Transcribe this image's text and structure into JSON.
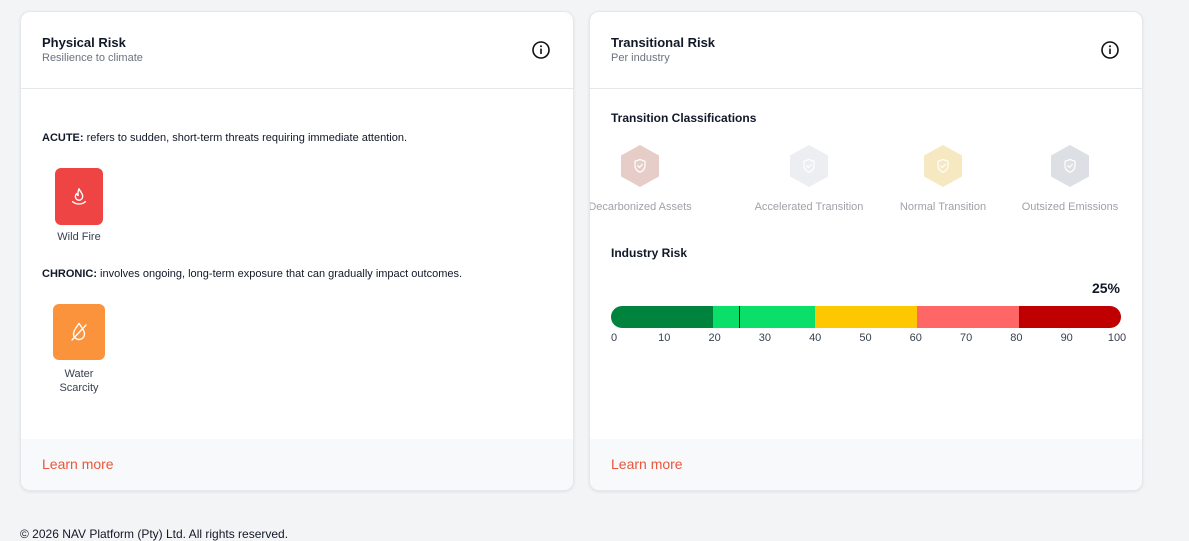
{
  "physical": {
    "title": "Physical Risk",
    "subtitle": "Resilience to climate",
    "acute_label": "ACUTE:",
    "acute_text": " refers to sudden, short-term threats requiring immediate attention.",
    "acute_risks": [
      {
        "label": "Wild Fire",
        "icon": "fire-icon",
        "color": "#ef4444"
      }
    ],
    "chronic_label": "CHRONIC:",
    "chronic_text": " involves ongoing, long-term exposure that can gradually impact outcomes.",
    "chronic_risks": [
      {
        "label_line1": "Water",
        "label_line2": "Scarcity",
        "icon": "water-drop-off-icon",
        "color": "#fb923c"
      }
    ],
    "learn_more": "Learn more"
  },
  "transitional": {
    "title": "Transitional Risk",
    "subtitle": "Per industry",
    "classifications_title": "Transition Classifications",
    "classifications": [
      {
        "label": "Decarbonized Assets",
        "color": "#e7cdc7",
        "icon": "shield-icon"
      },
      {
        "label": "Accelerated Transition",
        "color": "#eceef2",
        "icon": "shield-icon"
      },
      {
        "label": "Normal Transition",
        "color": "#f6e8c0",
        "icon": "shield-icon"
      },
      {
        "label": "Outsized Emissions",
        "color": "#dcdfe3",
        "icon": "shield-icon"
      }
    ],
    "industry_risk_title": "Industry Risk",
    "industry_risk_value": "25%",
    "industry_risk_percent": 25,
    "scale_colors": [
      "#00843d",
      "#0adf6a",
      "#fec800",
      "#ff6666",
      "#c00000"
    ],
    "ticks": [
      "0",
      "10",
      "20",
      "30",
      "40",
      "50",
      "60",
      "70",
      "80",
      "90",
      "100"
    ],
    "learn_more": "Learn more"
  },
  "footer": {
    "copyright": "© 2026 NAV Platform (Pty) Ltd. All rights reserved."
  }
}
